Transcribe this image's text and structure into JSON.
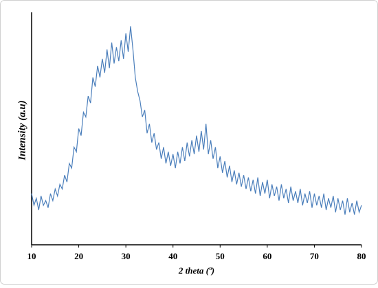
{
  "chart_data": {
    "type": "line",
    "xlabel": "2 theta (º)",
    "ylabel": "Intensity (a.u)",
    "xlim": [
      10,
      80
    ],
    "xticks": [
      10,
      20,
      30,
      40,
      50,
      60,
      70,
      80
    ],
    "ylim": [
      0,
      100
    ],
    "x": [
      10,
      10.5,
      11,
      11.5,
      12,
      12.5,
      13,
      13.5,
      14,
      14.5,
      15,
      15.5,
      16,
      16.5,
      17,
      17.5,
      18,
      18.5,
      19,
      19.5,
      20,
      20.5,
      21,
      21.5,
      22,
      22.5,
      23,
      23.5,
      24,
      24.5,
      25,
      25.5,
      26,
      26.5,
      27,
      27.5,
      28,
      28.5,
      29,
      29.5,
      30,
      30.5,
      31,
      31.5,
      32,
      32.5,
      33,
      33.5,
      34,
      34.5,
      35,
      35.5,
      36,
      36.5,
      37,
      37.5,
      38,
      38.5,
      39,
      39.5,
      40,
      40.5,
      41,
      41.5,
      42,
      42.5,
      43,
      43.5,
      44,
      44.5,
      45,
      45.5,
      46,
      46.5,
      47,
      47.5,
      48,
      48.5,
      49,
      49.5,
      50,
      50.5,
      51,
      51.5,
      52,
      52.5,
      53,
      53.5,
      54,
      54.5,
      55,
      55.5,
      56,
      56.5,
      57,
      57.5,
      58,
      58.5,
      59,
      59.5,
      60,
      60.5,
      61,
      61.5,
      62,
      62.5,
      63,
      63.5,
      64,
      64.5,
      65,
      65.5,
      66,
      66.5,
      67,
      67.5,
      68,
      68.5,
      69,
      69.5,
      70,
      70.5,
      71,
      71.5,
      72,
      72.5,
      73,
      73.5,
      74,
      74.5,
      75,
      75.5,
      76,
      76.5,
      77,
      77.5,
      78,
      78.5,
      79,
      79.5,
      80
    ],
    "series": [
      {
        "color": "#4a7ebb",
        "values": [
          22,
          17,
          20,
          15,
          21,
          17,
          19,
          16,
          22,
          19,
          24,
          21,
          26,
          24,
          30,
          27,
          35,
          33,
          42,
          40,
          50,
          47,
          57,
          55,
          64,
          61,
          72,
          68,
          77,
          72,
          80,
          74,
          84,
          76,
          87,
          78,
          85,
          79,
          88,
          80,
          91,
          83,
          94,
          84,
          72,
          66,
          62,
          55,
          58,
          48,
          52,
          44,
          48,
          41,
          44,
          37,
          42,
          35,
          40,
          34,
          39,
          33,
          40,
          35,
          42,
          36,
          44,
          38,
          45,
          39,
          47,
          40,
          49,
          41,
          52,
          39,
          45,
          37,
          42,
          33,
          38,
          31,
          36,
          29,
          34,
          27,
          32,
          26,
          31,
          25,
          30,
          24,
          29,
          23,
          28,
          22,
          29,
          21,
          27,
          22,
          28,
          20,
          26,
          21,
          25,
          19,
          26,
          20,
          24,
          18,
          25,
          19,
          23,
          18,
          24,
          17,
          22,
          18,
          23,
          16,
          22,
          17,
          21,
          16,
          22,
          15,
          20,
          16,
          21,
          14,
          20,
          15,
          19,
          13,
          20,
          14,
          18,
          13,
          19,
          14,
          17
        ]
      }
    ]
  }
}
